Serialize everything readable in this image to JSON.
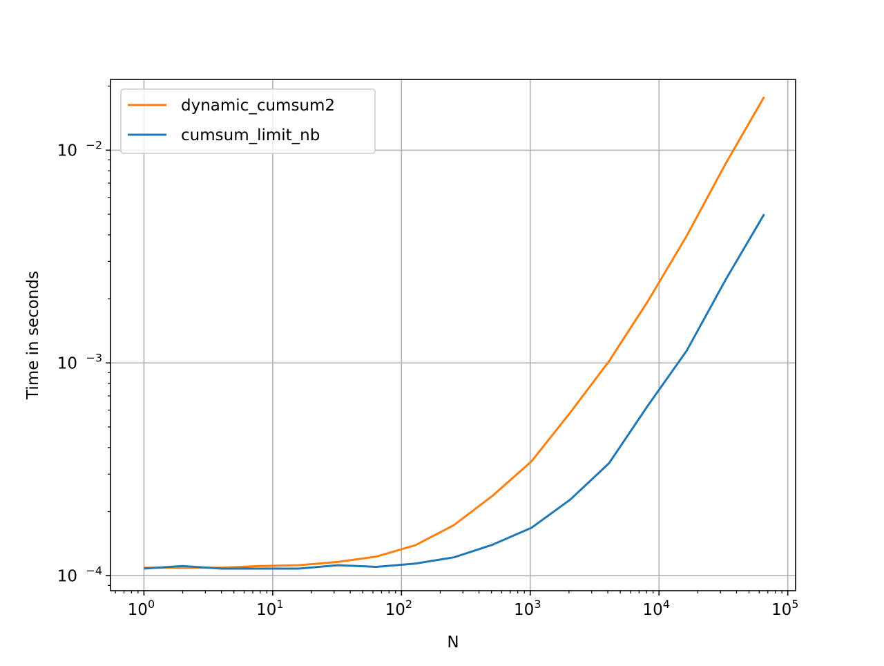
{
  "chart_data": {
    "type": "line",
    "title": "",
    "xlabel": "N",
    "ylabel": "Time in seconds",
    "xscale": "log",
    "yscale": "log",
    "xlim": [
      0.55,
      115000
    ],
    "ylim": [
      8.5e-05,
      0.0215
    ],
    "grid": true,
    "legend_position": "upper-left",
    "x_ticks": [
      {
        "value": 1,
        "base": "10",
        "exp": "0"
      },
      {
        "value": 10,
        "base": "10",
        "exp": "1"
      },
      {
        "value": 100,
        "base": "10",
        "exp": "2"
      },
      {
        "value": 1000,
        "base": "10",
        "exp": "3"
      },
      {
        "value": 10000,
        "base": "10",
        "exp": "4"
      },
      {
        "value": 100000,
        "base": "10",
        "exp": "5"
      }
    ],
    "y_ticks": [
      {
        "value": 0.0001,
        "base": "10",
        "exp": "−4"
      },
      {
        "value": 0.001,
        "base": "10",
        "exp": "−3"
      },
      {
        "value": 0.01,
        "base": "10",
        "exp": "−2"
      }
    ],
    "x": [
      1,
      2,
      4,
      8,
      16,
      32,
      64,
      128,
      256,
      512,
      1024,
      2048,
      4096,
      8192,
      16384,
      32768,
      65536
    ],
    "series": [
      {
        "name": "dynamic_cumsum2",
        "color": "#ff7f0e",
        "values": [
          0.000109,
          0.000109,
          0.000109,
          0.000111,
          0.000112,
          0.000116,
          0.000123,
          0.000139,
          0.000173,
          0.000238,
          0.000345,
          0.000585,
          0.00102,
          0.00195,
          0.00395,
          0.0086,
          0.0178
        ]
      },
      {
        "name": "cumsum_limit_nb",
        "color": "#1f77b4",
        "values": [
          0.000108,
          0.000111,
          0.000108,
          0.000108,
          0.000108,
          0.000112,
          0.00011,
          0.000114,
          0.000122,
          0.00014,
          0.000168,
          0.000228,
          0.000338,
          0.00063,
          0.00114,
          0.00245,
          0.005
        ]
      }
    ]
  }
}
